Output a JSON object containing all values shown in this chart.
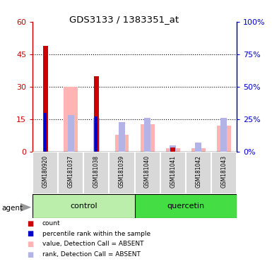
{
  "title": "GDS3133 / 1383351_at",
  "samples": [
    "GSM180920",
    "GSM181037",
    "GSM181038",
    "GSM181039",
    "GSM181040",
    "GSM181041",
    "GSM181042",
    "GSM181043"
  ],
  "count_values": [
    49,
    0,
    35,
    0,
    0,
    2,
    0,
    0
  ],
  "percentile_rank_values": [
    30,
    0,
    27,
    0,
    0,
    0,
    0,
    0
  ],
  "absent_value_values": [
    0,
    50,
    0,
    13,
    21,
    3,
    3,
    20
  ],
  "absent_rank_values": [
    0,
    28,
    26,
    23,
    26,
    5,
    7,
    26
  ],
  "ylim_left": [
    0,
    60
  ],
  "ylim_right": [
    0,
    100
  ],
  "yticks_left": [
    0,
    15,
    30,
    45,
    60
  ],
  "ytick_labels_left": [
    "0",
    "15",
    "30",
    "45",
    "60"
  ],
  "ytick_labels_right": [
    "0%",
    "25%",
    "50%",
    "75%",
    "100%"
  ],
  "color_count": "#cc0000",
  "color_rank": "#0000cc",
  "color_absent_value": "#ffb3b3",
  "color_absent_rank": "#b3b3e6",
  "control_bg": "#bbeeaa",
  "quercetin_bg": "#44dd44",
  "bar_width": 0.55,
  "legend_items": [
    {
      "label": "count",
      "color": "#cc0000"
    },
    {
      "label": "percentile rank within the sample",
      "color": "#0000cc"
    },
    {
      "label": "value, Detection Call = ABSENT",
      "color": "#ffb3b3"
    },
    {
      "label": "rank, Detection Call = ABSENT",
      "color": "#b3b3e6"
    }
  ]
}
